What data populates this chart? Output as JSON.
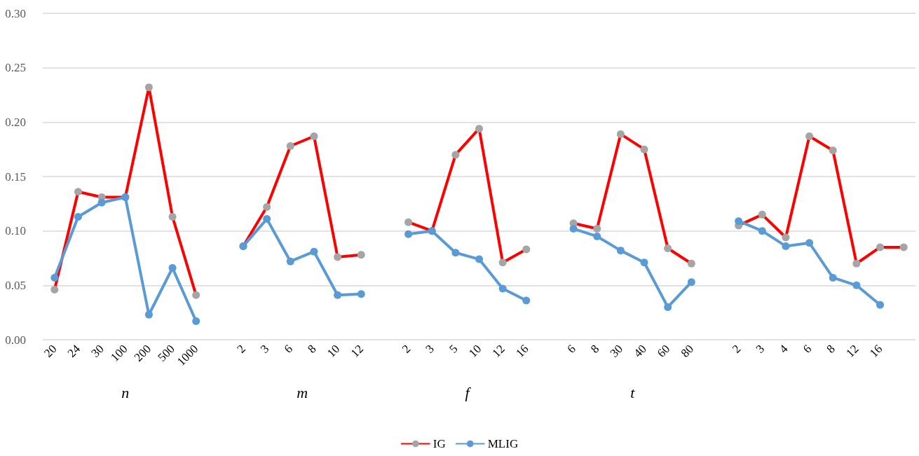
{
  "chart_data": {
    "type": "line",
    "categories": [
      "20",
      "24",
      "30",
      "100",
      "200",
      "500",
      "1000",
      null,
      "2",
      "3",
      "6",
      "8",
      "10",
      "12",
      null,
      "2",
      "3",
      "5",
      "10",
      "12",
      "16",
      null,
      "6",
      "8",
      "30",
      "40",
      "60",
      "80",
      null,
      "2",
      "3",
      "4",
      "6",
      "8",
      "12",
      "16",
      null
    ],
    "series": [
      {
        "name": "IG",
        "color": "#ff0000",
        "values": [
          0.046,
          0.136,
          0.131,
          0.131,
          0.232,
          0.113,
          0.041,
          null,
          0.086,
          0.122,
          0.178,
          0.187,
          0.076,
          0.078,
          null,
          0.108,
          0.1,
          0.17,
          0.194,
          0.071,
          0.083,
          null,
          0.107,
          0.102,
          0.189,
          0.175,
          0.084,
          0.07,
          null,
          0.105,
          0.115,
          0.094,
          0.187,
          0.174,
          0.07,
          0.085,
          0.085
        ]
      },
      {
        "name": "MLIG",
        "color": "#5b9bd5",
        "values": [
          0.057,
          0.113,
          0.126,
          0.131,
          0.023,
          0.066,
          0.017,
          null,
          0.086,
          0.111,
          0.072,
          0.081,
          0.041,
          0.042,
          null,
          0.097,
          0.1,
          0.08,
          0.074,
          0.047,
          0.036,
          null,
          0.102,
          0.095,
          0.082,
          0.071,
          0.03,
          0.053,
          null,
          0.109,
          0.1,
          0.086,
          0.089,
          0.057,
          0.05,
          0.032,
          null
        ]
      }
    ],
    "ylim": [
      0,
      0.3
    ],
    "yticks": [
      {
        "value": 0,
        "label": "0.00"
      },
      {
        "value": 0.05,
        "label": "0.05"
      },
      {
        "value": 0.1,
        "label": "0.10"
      },
      {
        "value": 0.15,
        "label": "0.15"
      },
      {
        "value": 0.2,
        "label": "0.20"
      },
      {
        "value": 0.25,
        "label": "0.25"
      },
      {
        "value": 0.3,
        "label": "0.30"
      }
    ],
    "grid": "y",
    "legend": "bottom",
    "marker": "circle",
    "line_style": "solid",
    "annotations": [
      "n",
      "m",
      "f",
      "t"
    ]
  }
}
